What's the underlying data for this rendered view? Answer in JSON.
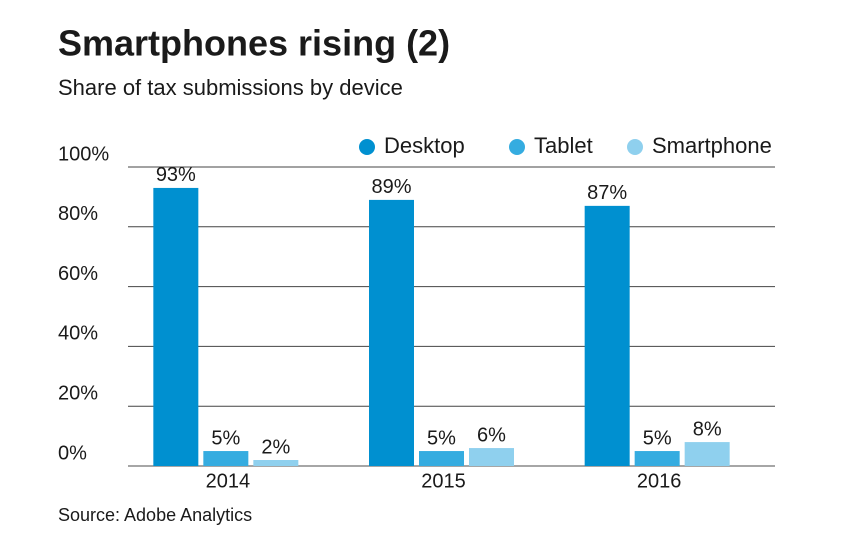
{
  "chart_data": {
    "type": "bar",
    "title": "Smartphones rising (2)",
    "subtitle": "Share of tax submissions by device",
    "source": "Source: Adobe Analytics",
    "categories": [
      "2014",
      "2015",
      "2016"
    ],
    "series": [
      {
        "name": "Desktop",
        "color": "#0090d0",
        "values": [
          93,
          89,
          87
        ],
        "value_labels": [
          "93%",
          "89%",
          "87%"
        ]
      },
      {
        "name": "Tablet",
        "color": "#35ace0",
        "values": [
          5,
          5,
          5
        ],
        "value_labels": [
          "5%",
          "5%",
          "5%"
        ]
      },
      {
        "name": "Smartphone",
        "color": "#8fd0ee",
        "values": [
          2,
          6,
          8
        ],
        "value_labels": [
          "2%",
          "6%",
          "8%"
        ]
      }
    ],
    "ylim": [
      0,
      100
    ],
    "yticks": [
      {
        "value": 0,
        "label": "0%"
      },
      {
        "value": 20,
        "label": "20%"
      },
      {
        "value": 40,
        "label": "40%"
      },
      {
        "value": 60,
        "label": "60%"
      },
      {
        "value": 80,
        "label": "80%"
      },
      {
        "value": 100,
        "label": "100%"
      }
    ],
    "grid": true,
    "legend": "top-right"
  }
}
